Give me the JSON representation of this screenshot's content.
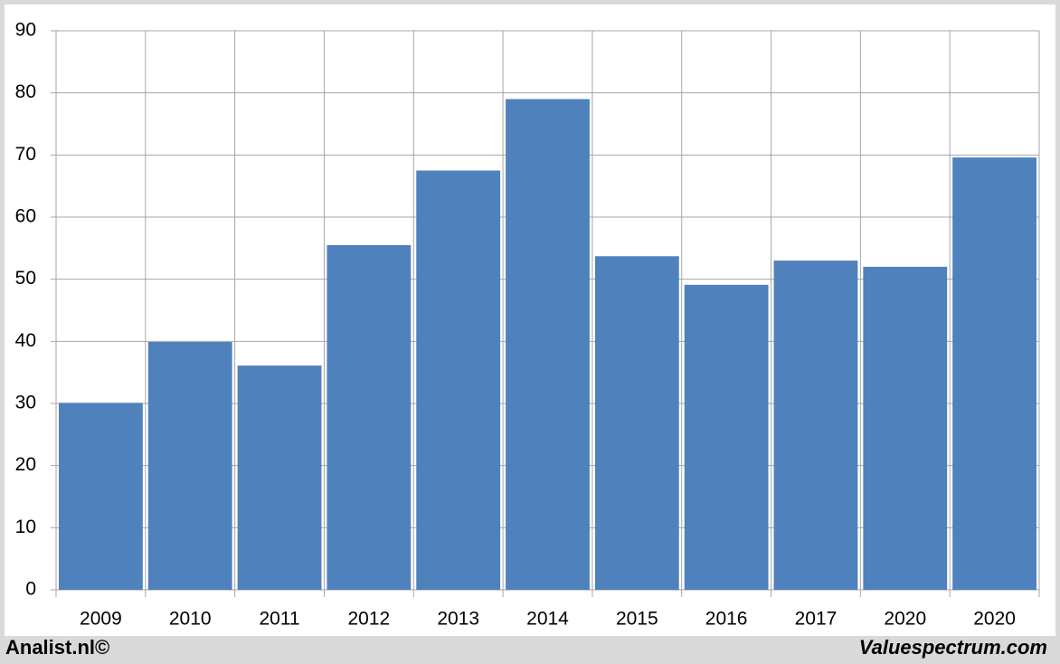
{
  "chart_data": {
    "type": "bar",
    "categories": [
      "2009",
      "2010",
      "2011",
      "2012",
      "2013",
      "2014",
      "2015",
      "2016",
      "2017",
      "2020",
      "2020"
    ],
    "values": [
      30.1,
      39.9,
      36.1,
      55.5,
      67.5,
      79.0,
      53.7,
      49.1,
      53.0,
      52.0,
      69.6
    ],
    "color": "#4f81bd",
    "ylim": [
      0,
      90
    ],
    "yticks": [
      0,
      10,
      20,
      30,
      40,
      50,
      60,
      70,
      80,
      90
    ],
    "grid": true,
    "annotations": [
      "Analist.nl©",
      "Valuespectrum.com"
    ]
  }
}
